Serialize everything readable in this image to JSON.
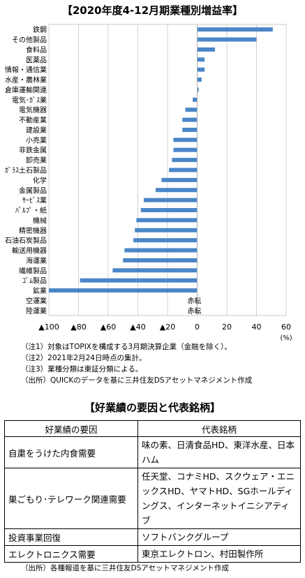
{
  "chart_title": "【2020年度4-12月期業種別増益率】",
  "chart_data": {
    "type": "bar",
    "orientation": "horizontal",
    "title": "【2020年度4-12月期業種別増益率】",
    "unit_label": "(%)",
    "xlim": [
      -100,
      60
    ],
    "xticks": [
      -100,
      -80,
      -60,
      -40,
      -20,
      0,
      20,
      40,
      60
    ],
    "xtick_labels": [
      "▲100",
      "▲80",
      "▲60",
      "▲40",
      "▲20",
      "0",
      "20",
      "40",
      "60"
    ],
    "grid": true,
    "color": "#4a86c8",
    "categories": [
      "鉄鋼",
      "その他製品",
      "食料品",
      "医薬品",
      "情報・通信業",
      "水産・農林業",
      "倉庫運輸関連",
      "電気･ｶﾞｽ業",
      "電気機器",
      "不動産業",
      "建設業",
      "小売業",
      "非鉄金属",
      "卸売業",
      "ｶﾞﾗｽ土石製品",
      "化学",
      "金属製品",
      "ｻｰﾋﾞｽ業",
      "ﾊﾟﾙﾌﾟ・紙",
      "機械",
      "精密機器",
      "石油石炭製品",
      "輸送用機器",
      "海運業",
      "繊維製品",
      "ｺﾞﾑ製品",
      "鉱業",
      "空運業",
      "陸運業"
    ],
    "values": [
      51,
      40,
      12,
      5,
      5,
      3,
      1,
      -3,
      -8,
      -10,
      -10,
      -16,
      -16,
      -17,
      -19,
      -24,
      -28,
      -36,
      -38,
      -41,
      -42,
      -43,
      -49,
      -50,
      -57,
      -79,
      -100,
      null,
      null
    ],
    "annotations": [
      {
        "category": "空運業",
        "text": "赤転"
      },
      {
        "category": "陸運業",
        "text": "赤転"
      }
    ]
  },
  "notes": [
    "（注1）対象はTOPIXを構成する3月期決算企業（金融を除く）。",
    "（注2）2021年2月24日時点の集計。",
    "（注3）業種分類は東証分類による。",
    "（出所）QUICKのデータを基に三井住友DSアセットマネジメント作成"
  ],
  "table_title": "【好業績の要因と代表銘柄】",
  "table": {
    "headers": [
      "好業績の要因",
      "代表銘柄"
    ],
    "rows": [
      {
        "factor": "自粛をうけた内食需要",
        "stocks": "味の素、日清食品HD、東洋水産、日本ハム"
      },
      {
        "factor": "巣ごもり･テレワーク関連需要",
        "stocks": "任天堂、コナミHD、スクウェア・エニックスHD、ヤマトHD、SGホールディングス、インターネットイニシアティブ"
      },
      {
        "factor": "投資事業回復",
        "stocks": "ソフトバンクグループ"
      },
      {
        "factor": "エレクトロニクス需要",
        "stocks": "東京エレクトロン、村田製作所"
      }
    ]
  },
  "source2": "（出所）各種報道を基に三井住友DSアセットマネジメント作成"
}
